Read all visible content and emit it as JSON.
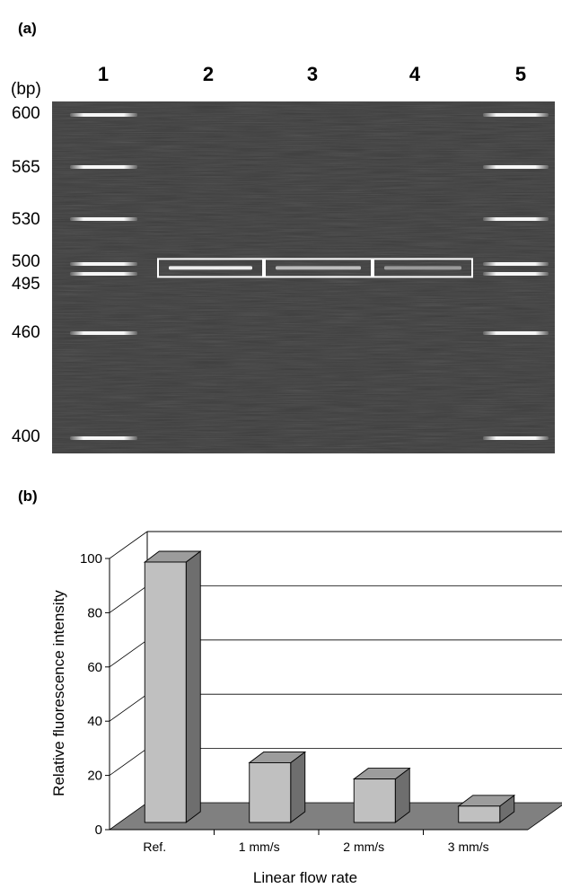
{
  "panel_a": {
    "label": "(a)",
    "lanes": [
      "1",
      "2",
      "3",
      "4",
      "5"
    ],
    "bp_unit": "(bp)",
    "markers": [
      {
        "bp": 600,
        "label": "600"
      },
      {
        "bp": 565,
        "label": "565"
      },
      {
        "bp": 530,
        "label": "530"
      },
      {
        "bp": 500,
        "label": "500"
      },
      {
        "bp": 495,
        "label": "495"
      },
      {
        "bp": 460,
        "label": "460"
      },
      {
        "bp": 400,
        "label": "400"
      }
    ],
    "sample_band_bp": 498,
    "sample_band_relative_intensity": [
      1.0,
      0.6,
      0.3
    ]
  },
  "panel_b": {
    "label": "(b)"
  },
  "chart_data": {
    "type": "bar",
    "categories": [
      "Ref.",
      "1 mm/s",
      "2 mm/s",
      "3 mm/s"
    ],
    "values": [
      100,
      26,
      20,
      10
    ],
    "title": "",
    "xlabel": "Linear flow rate",
    "ylabel": "Relative fluorescence intensity",
    "ylim": [
      0,
      100
    ],
    "yticks": [
      "0",
      "20",
      "40",
      "60",
      "80",
      "100"
    ],
    "grid": true,
    "legend": "none",
    "colors": {
      "bar_front": "#c0c0c0",
      "bar_side": "#6e6e6e",
      "bar_top": "#9c9c9c",
      "floor": "#808080"
    }
  }
}
